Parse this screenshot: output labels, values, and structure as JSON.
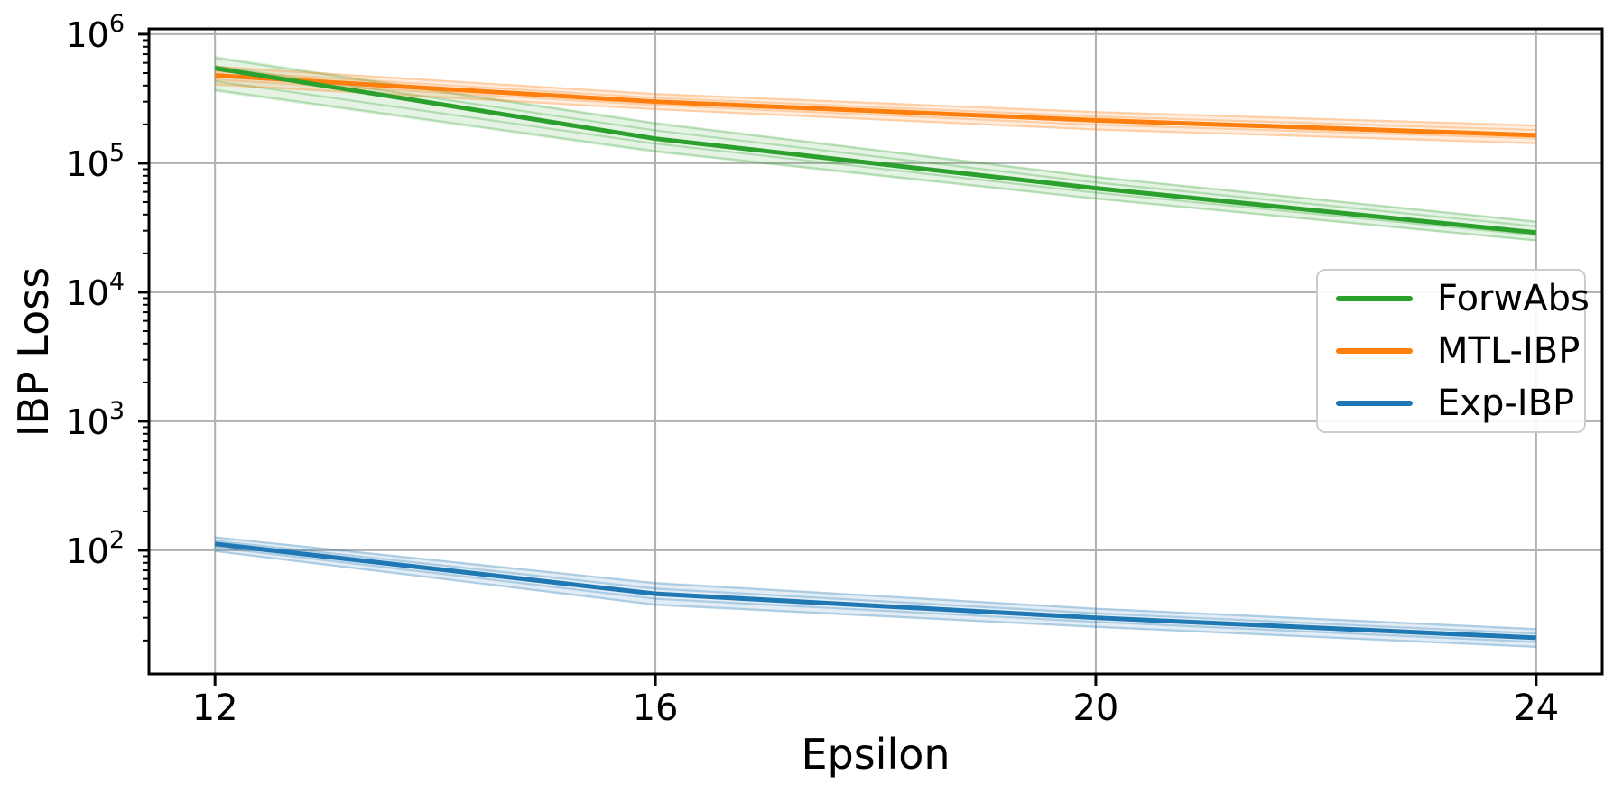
{
  "chart_data": {
    "type": "line",
    "title": "",
    "xlabel": "Epsilon",
    "ylabel": "IBP Loss",
    "yscale": "log",
    "grid": true,
    "legend_position": "center-right",
    "x": [
      12,
      16,
      20,
      24
    ],
    "xticks": [
      12,
      16,
      20,
      24
    ],
    "xlim": [
      11.4,
      24.6
    ],
    "ylim": [
      11,
      1100000
    ],
    "ytick_exponents": [
      2,
      3,
      4,
      5,
      6
    ],
    "series": [
      {
        "name": "ForwAbs",
        "color": "#2ca02c",
        "values": [
          545000,
          155000,
          64000,
          29000
        ],
        "band_upper": [
          680000,
          210000,
          80000,
          36000
        ],
        "band_lower": [
          356000,
          120000,
          52000,
          24700
        ]
      },
      {
        "name": "MTL-IBP",
        "color": "#ff7f0e",
        "values": [
          480000,
          300000,
          215000,
          165000
        ],
        "band_upper": [
          570000,
          350000,
          254000,
          200000
        ],
        "band_lower": [
          400000,
          258000,
          179000,
          140000
        ]
      },
      {
        "name": "Exp-IBP",
        "color": "#1f77b4",
        "values": [
          112,
          46,
          30,
          21
        ],
        "band_upper": [
          128,
          57,
          36,
          25
        ],
        "band_lower": [
          97,
          37,
          25,
          17.5
        ]
      }
    ],
    "style_colors": {
      "grid": "#b0b0b0",
      "spine": "#000000",
      "tick_label": "#000000",
      "legend_border": "#cccccc"
    }
  }
}
